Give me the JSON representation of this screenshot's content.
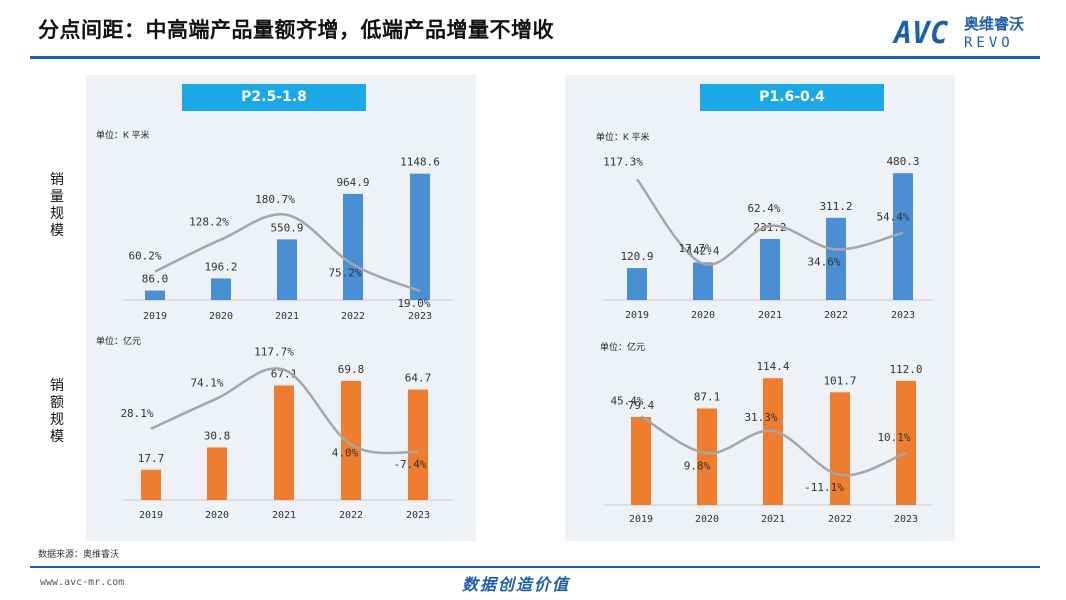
{
  "header": {
    "title": "分点间距：中高端产品量额齐增，低端产品增量不增收",
    "logo": {
      "latin": "AVC",
      "chinese": "奥维睿沃",
      "sub": "REVO"
    }
  },
  "row_labels": {
    "volume": "销量规模",
    "value": "销额规模"
  },
  "panels": [
    {
      "title": "P2.5-1.8",
      "volume_unit": "单位：K 平米",
      "value_unit": "单位：亿元"
    },
    {
      "title": "P1.6-0.4",
      "volume_unit": "单位：K 平米",
      "value_unit": "单位：亿元"
    }
  ],
  "footer": {
    "source": "数据来源：奥维睿沃",
    "url": "www.avc-mr.com",
    "slogan": "数据创造价值"
  },
  "colors": {
    "accent": "#1f5fa8",
    "panel_title_bg": "#1aa8e6",
    "bar_volume": "#4a8fd4",
    "bar_value": "#ef7d2f",
    "line": "#a6a6a6",
    "panel_bg": "#eef2f6"
  },
  "chart_data": [
    {
      "type": "bar",
      "panel": "P2.5-1.8",
      "unit": "单位：K 平米",
      "categories": [
        "2019",
        "2020",
        "2021",
        "2022",
        "2023"
      ],
      "values": [
        86.0,
        196.2,
        550.9,
        964.9,
        1148.6
      ],
      "value_labels": [
        "86.0",
        "196.2",
        "550.9",
        "964.9",
        "1148.6"
      ],
      "growth": [
        60.2,
        128.2,
        180.7,
        75.2,
        19.0
      ],
      "growth_labels": [
        "60.2%",
        "128.2%",
        "180.7%",
        "75.2%",
        "19.0%"
      ],
      "ylim": [
        0,
        1200
      ],
      "growth_range": [
        0,
        280
      ]
    },
    {
      "type": "bar",
      "panel": "P2.5-1.8",
      "unit": "单位：亿元",
      "categories": [
        "2019",
        "2020",
        "2021",
        "2022",
        "2023"
      ],
      "values": [
        17.7,
        30.8,
        67.1,
        69.8,
        64.7
      ],
      "value_labels": [
        "17.7",
        "30.8",
        "67.1",
        "69.8",
        "64.7"
      ],
      "growth": [
        28.1,
        74.1,
        117.7,
        4.0,
        -7.4
      ],
      "growth_labels": [
        "28.1%",
        "74.1%",
        "117.7%",
        "4.0%",
        "-7.4%"
      ],
      "ylim": [
        0,
        75
      ],
      "growth_range": [
        -80,
        140
      ]
    },
    {
      "type": "bar",
      "panel": "P1.6-0.4",
      "unit": "单位：K 平米",
      "categories": [
        "2019",
        "2020",
        "2021",
        "2022",
        "2023"
      ],
      "values": [
        120.9,
        142.4,
        231.2,
        311.2,
        480.3
      ],
      "value_labels": [
        "120.9",
        "142.4",
        "231.2",
        "311.2",
        "480.3"
      ],
      "growth": [
        117.3,
        17.7,
        62.4,
        34.6,
        54.4
      ],
      "growth_labels": [
        "117.3%",
        "17.7%",
        "62.4%",
        "34.6%",
        "54.4%"
      ],
      "ylim": [
        0,
        500
      ],
      "growth_range": [
        -25,
        140
      ]
    },
    {
      "type": "bar",
      "panel": "P1.6-0.4",
      "unit": "单位：亿元",
      "categories": [
        "2019",
        "2020",
        "2021",
        "2022",
        "2023"
      ],
      "values": [
        79.4,
        87.1,
        114.4,
        101.7,
        112.0
      ],
      "value_labels": [
        "79.4",
        "87.1",
        "114.4",
        "101.7",
        "112.0"
      ],
      "growth": [
        45.4,
        9.8,
        31.3,
        -11.1,
        10.1
      ],
      "growth_labels": [
        "45.4%",
        "9.8%",
        "31.3%",
        "-11.1%",
        "10.1%"
      ],
      "ylim": [
        0,
        120
      ],
      "growth_range": [
        -40,
        90
      ]
    }
  ]
}
